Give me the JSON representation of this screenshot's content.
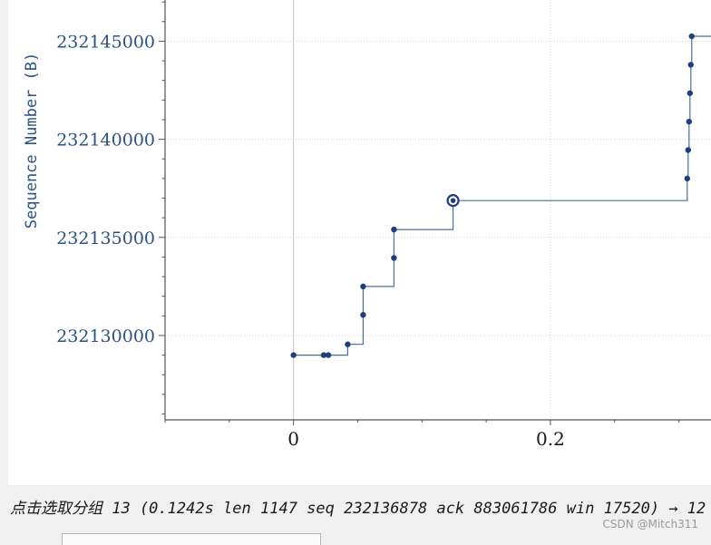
{
  "chart_data": {
    "type": "scatter",
    "title": "",
    "ylabel": "Sequence Number (B)",
    "xlabel": "",
    "x_ticks": [
      0,
      0.2
    ],
    "x_tick_labels": [
      "0",
      "0.2"
    ],
    "y_ticks": [
      232130000,
      232135000,
      232140000,
      232145000
    ],
    "y_tick_labels": [
      "232130000",
      "232135000",
      "232140000",
      "232145000"
    ],
    "xlim": [
      -0.1,
      0.325
    ],
    "ylim": [
      232125700,
      232147100
    ],
    "grid": true,
    "series": [
      {
        "points": [
          {
            "x": 0.0,
            "y": 232129000
          },
          {
            "x": 0.0235,
            "y": 232129000
          },
          {
            "x": 0.0271,
            "y": 232129000
          },
          {
            "x": 0.0422,
            "y": 232129550
          },
          {
            "x": 0.0542,
            "y": 232131050
          },
          {
            "x": 0.0542,
            "y": 232132500
          },
          {
            "x": 0.0782,
            "y": 232133950
          },
          {
            "x": 0.0782,
            "y": 232135400
          },
          {
            "x": 0.1242,
            "y": 232136878
          },
          {
            "x": 0.3065,
            "y": 232138000
          },
          {
            "x": 0.3072,
            "y": 232139450
          },
          {
            "x": 0.3079,
            "y": 232140900
          },
          {
            "x": 0.3086,
            "y": 232142350
          },
          {
            "x": 0.3093,
            "y": 232143800
          },
          {
            "x": 0.31,
            "y": 232145250
          }
        ],
        "step_line": [
          [
            0.0,
            232129000
          ],
          [
            0.0422,
            232129000
          ],
          [
            0.0422,
            232129550
          ],
          [
            0.0542,
            232129550
          ],
          [
            0.0542,
            232132500
          ],
          [
            0.0782,
            232132500
          ],
          [
            0.0782,
            232135400
          ],
          [
            0.1242,
            232135400
          ],
          [
            0.1242,
            232136878
          ],
          [
            0.3065,
            232136878
          ],
          [
            0.3065,
            232138000
          ],
          [
            0.3072,
            232138000
          ],
          [
            0.3072,
            232139450
          ],
          [
            0.3079,
            232139450
          ],
          [
            0.3079,
            232140900
          ],
          [
            0.3086,
            232140900
          ],
          [
            0.3086,
            232142350
          ],
          [
            0.3093,
            232142350
          ],
          [
            0.3093,
            232143800
          ],
          [
            0.31,
            232143800
          ],
          [
            0.31,
            232145250
          ],
          [
            0.325,
            232145250
          ]
        ],
        "selected": {
          "x": 0.1242,
          "y": 232136878
        }
      }
    ],
    "colors": {
      "series": "#1f3f7a",
      "line": "#4a6f9c",
      "axis_text": "#2b5283",
      "grid": "#d6d6d6",
      "zero_line": "#c8c8c8"
    }
  },
  "status": {
    "text": "点击选取分组 13 (0.1242s len 1147 seq 232136878 ack 883061786 win 17520) → 12"
  },
  "watermark": "CSDN @Mitch311"
}
